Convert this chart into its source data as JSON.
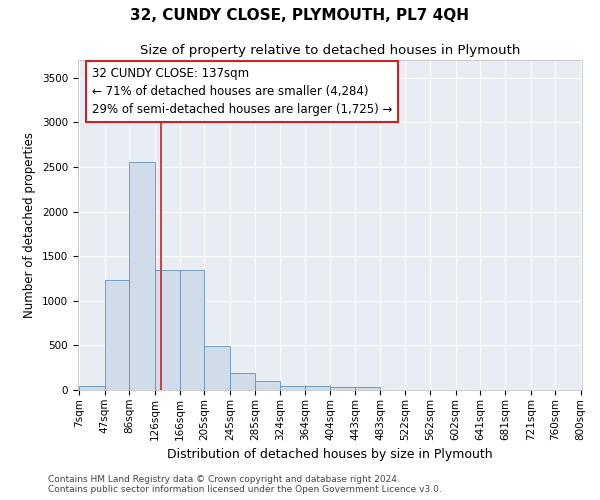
{
  "title": "32, CUNDY CLOSE, PLYMOUTH, PL7 4QH",
  "subtitle": "Size of property relative to detached houses in Plymouth",
  "xlabel": "Distribution of detached houses by size in Plymouth",
  "ylabel": "Number of detached properties",
  "footnote1": "Contains HM Land Registry data © Crown copyright and database right 2024.",
  "footnote2": "Contains public sector information licensed under the Open Government Licence v3.0.",
  "annotation_title": "32 CUNDY CLOSE: 137sqm",
  "annotation_line1": "← 71% of detached houses are smaller (4,284)",
  "annotation_line2": "29% of semi-detached houses are larger (1,725) →",
  "bar_color": "#d0dcea",
  "bar_edge_color": "#6090b8",
  "background_color": "#e8edf4",
  "vline_color": "#cc2222",
  "vline_x": 137,
  "bin_edges": [
    7,
    47,
    86,
    126,
    166,
    205,
    245,
    285,
    324,
    364,
    404,
    443,
    483,
    522,
    562,
    602,
    641,
    681,
    721,
    760,
    800
  ],
  "bar_heights": [
    50,
    1230,
    2560,
    1340,
    1340,
    490,
    190,
    100,
    50,
    50,
    35,
    35,
    5,
    0,
    0,
    0,
    0,
    0,
    0,
    0
  ],
  "ylim": [
    0,
    3700
  ],
  "yticks": [
    0,
    500,
    1000,
    1500,
    2000,
    2500,
    3000,
    3500
  ],
  "annotation_box_facecolor": "#ffffff",
  "annotation_box_edgecolor": "#cc2222",
  "title_fontsize": 11,
  "subtitle_fontsize": 9.5,
  "axis_label_fontsize": 9,
  "ylabel_fontsize": 8.5,
  "tick_fontsize": 7.5,
  "annotation_fontsize": 8.5,
  "footnote_fontsize": 6.5
}
